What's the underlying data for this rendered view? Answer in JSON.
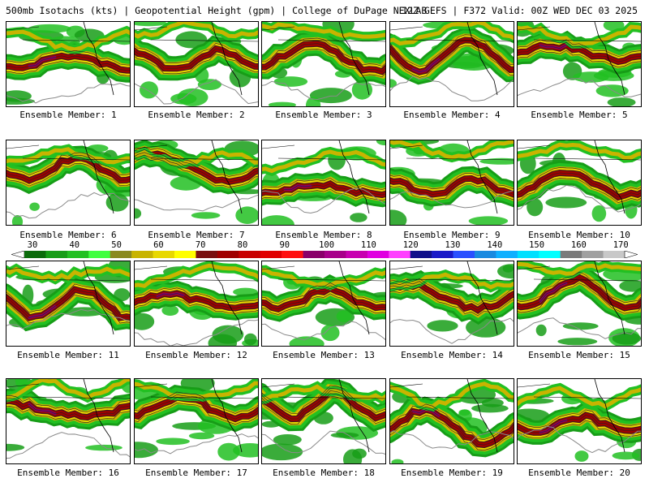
{
  "header": {
    "left": "500mb Isotachs (kts) | Geopotential Height (gpm) | College of DuPage NEXLAB",
    "right": "12Z GEFS | F372 Valid: 00Z WED DEC 03 2025"
  },
  "members": [
    {
      "label": "Ensemble Member: 1"
    },
    {
      "label": "Ensemble Member: 2"
    },
    {
      "label": "Ensemble Member: 3"
    },
    {
      "label": "Ensemble Member: 4"
    },
    {
      "label": "Ensemble Member: 5"
    },
    {
      "label": "Ensemble Member: 6"
    },
    {
      "label": "Ensemble Member: 7"
    },
    {
      "label": "Ensemble Member: 8"
    },
    {
      "label": "Ensemble Member: 9"
    },
    {
      "label": "Ensemble Member: 10"
    },
    {
      "label": "Ensemble Member: 11"
    },
    {
      "label": "Ensemble Member: 12"
    },
    {
      "label": "Ensemble Member: 13"
    },
    {
      "label": "Ensemble Member: 14"
    },
    {
      "label": "Ensemble Member: 15"
    },
    {
      "label": "Ensemble Member: 16"
    },
    {
      "label": "Ensemble Member: 17"
    },
    {
      "label": "Ensemble Member: 18"
    },
    {
      "label": "Ensemble Member: 19"
    },
    {
      "label": "Ensemble Member: 20"
    }
  ],
  "colorbar": {
    "ticks": [
      "30",
      "40",
      "50",
      "60",
      "70",
      "80",
      "90",
      "100",
      "110",
      "120",
      "130",
      "140",
      "150",
      "160",
      "170"
    ],
    "colors": [
      "#0b6b0b",
      "#179d17",
      "#22c022",
      "#40ff40",
      "#8a8a20",
      "#c8b400",
      "#e8d800",
      "#ffff00",
      "#7a1010",
      "#a00000",
      "#c80000",
      "#e00000",
      "#ff1010",
      "#8a006a",
      "#a8008a",
      "#c800b0",
      "#e000e0",
      "#ff40ff",
      "#10108a",
      "#1a1ac8",
      "#2a50ff",
      "#1a8ae0",
      "#10b0ff",
      "#00e0ff",
      "#00ffff",
      "#7a7a7a",
      "#a0a0a0",
      "#c8c8c8"
    ]
  }
}
